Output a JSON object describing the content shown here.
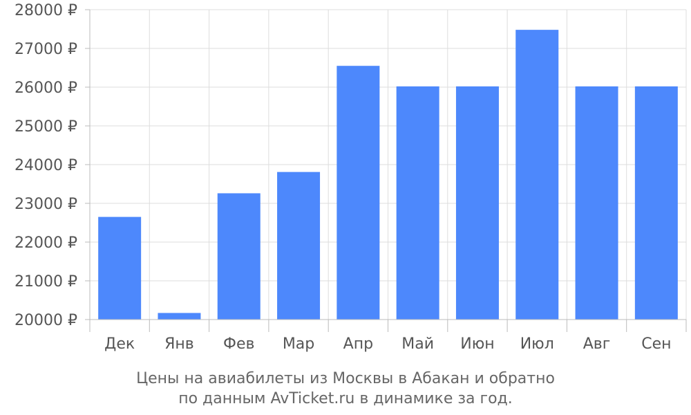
{
  "chart_data": {
    "type": "bar",
    "categories": [
      "Дек",
      "Янв",
      "Фев",
      "Мар",
      "Апр",
      "Май",
      "Июн",
      "Июл",
      "Авг",
      "Сен"
    ],
    "values": [
      22650,
      20170,
      23260,
      23810,
      26550,
      26020,
      26020,
      27480,
      26020,
      26020
    ],
    "ylim": [
      20000,
      28000
    ],
    "yticks": [
      20000,
      21000,
      22000,
      23000,
      24000,
      25000,
      26000,
      27000,
      28000
    ],
    "ytick_labels": [
      "20000 ₽",
      "21000 ₽",
      "22000 ₽",
      "23000 ₽",
      "24000 ₽",
      "25000 ₽",
      "26000 ₽",
      "27000 ₽",
      "28000 ₽"
    ],
    "grid": true,
    "bar_color": "#4d88fc",
    "grid_color": "#dddddd",
    "caption_lines": [
      "Цены на авиабилеты из Москвы в Абакан и обратно",
      "по данным AvTicket.ru в динамике за год."
    ]
  }
}
